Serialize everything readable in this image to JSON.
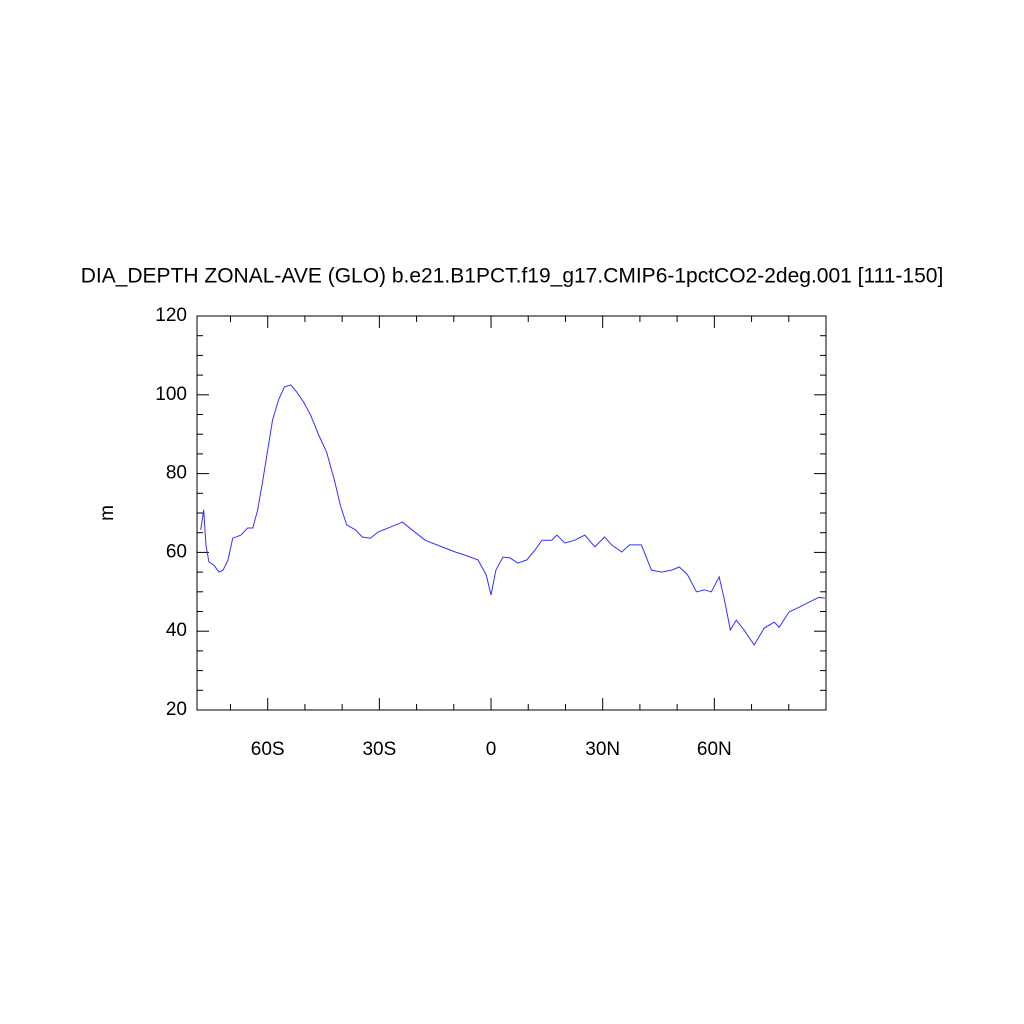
{
  "chart_data": {
    "type": "line",
    "title": "DIA_DEPTH ZONAL-AVE (GLO) b.e21.B1PCT.f19_g17.CMIP6-1pctCO2-2deg.001 [111-150]",
    "ylabel": "m",
    "x": [
      -78.0,
      -77.2,
      -76.6,
      -75.8,
      -74.5,
      -73.1,
      -72.0,
      -70.7,
      -69.4,
      -67.2,
      -65.4,
      -64.0,
      -62.7,
      -61.3,
      -60.0,
      -58.7,
      -57.1,
      -55.5,
      -53.8,
      -52.2,
      -50.4,
      -48.5,
      -46.3,
      -44.2,
      -42.1,
      -40.5,
      -38.8,
      -36.4,
      -34.6,
      -32.4,
      -30.3,
      -27.1,
      -23.8,
      -21.2,
      -17.7,
      -13.7,
      -9.6,
      -7.0,
      -3.5,
      -1.3,
      0.0,
      1.3,
      3.2,
      5.1,
      7.2,
      9.6,
      11.8,
      13.7,
      16.3,
      17.7,
      19.8,
      22.5,
      25.2,
      27.9,
      30.5,
      32.4,
      35.1,
      37.2,
      40.4,
      43.1,
      45.8,
      48.5,
      50.6,
      52.8,
      55.2,
      57.3,
      59.2,
      61.3,
      62.7,
      64.3,
      65.9,
      68.0,
      70.7,
      73.4,
      76.1,
      77.4,
      80.1,
      82.8,
      85.5,
      88.1,
      89.7
    ],
    "series": [
      {
        "name": "DIA_DEPTH",
        "color": "#3333ff",
        "values": [
          65.7,
          70.8,
          61.9,
          57.6,
          56.8,
          55.0,
          55.5,
          58.0,
          63.6,
          64.4,
          66.2,
          66.2,
          70.8,
          78.4,
          86.0,
          93.6,
          98.7,
          102.0,
          102.5,
          100.7,
          98.2,
          94.9,
          89.8,
          85.5,
          78.4,
          72.0,
          67.0,
          65.7,
          63.9,
          63.6,
          65.2,
          66.4,
          67.7,
          65.7,
          63.1,
          61.6,
          60.1,
          59.3,
          58.1,
          54.3,
          49.2,
          55.5,
          58.8,
          58.6,
          57.3,
          58.1,
          60.6,
          63.1,
          63.1,
          64.4,
          62.4,
          63.1,
          64.4,
          61.4,
          63.9,
          61.9,
          60.1,
          61.9,
          61.9,
          55.5,
          55.0,
          55.5,
          56.3,
          54.3,
          50.0,
          50.5,
          50.0,
          53.8,
          48.0,
          40.3,
          42.8,
          40.3,
          36.5,
          40.8,
          42.3,
          41.0,
          44.9,
          46.1,
          47.4,
          48.6,
          48.4
        ]
      }
    ],
    "xlim": [
      -79,
      90
    ],
    "ylim": [
      20,
      120
    ],
    "xticks": [
      {
        "value": -60,
        "label": "60S"
      },
      {
        "value": -30,
        "label": "30S"
      },
      0,
      {
        "value": 30,
        "label": "30N"
      },
      {
        "value": 60,
        "label": "60N"
      }
    ],
    "yticks": [
      20,
      40,
      60,
      80,
      100,
      120
    ],
    "xminorticks": [
      -70,
      -50,
      -40,
      -20,
      -10,
      10,
      20,
      40,
      50,
      70,
      80
    ],
    "yminorticks": [
      25,
      30,
      35,
      45,
      50,
      55,
      65,
      70,
      75,
      85,
      90,
      95,
      105,
      110,
      115
    ]
  }
}
